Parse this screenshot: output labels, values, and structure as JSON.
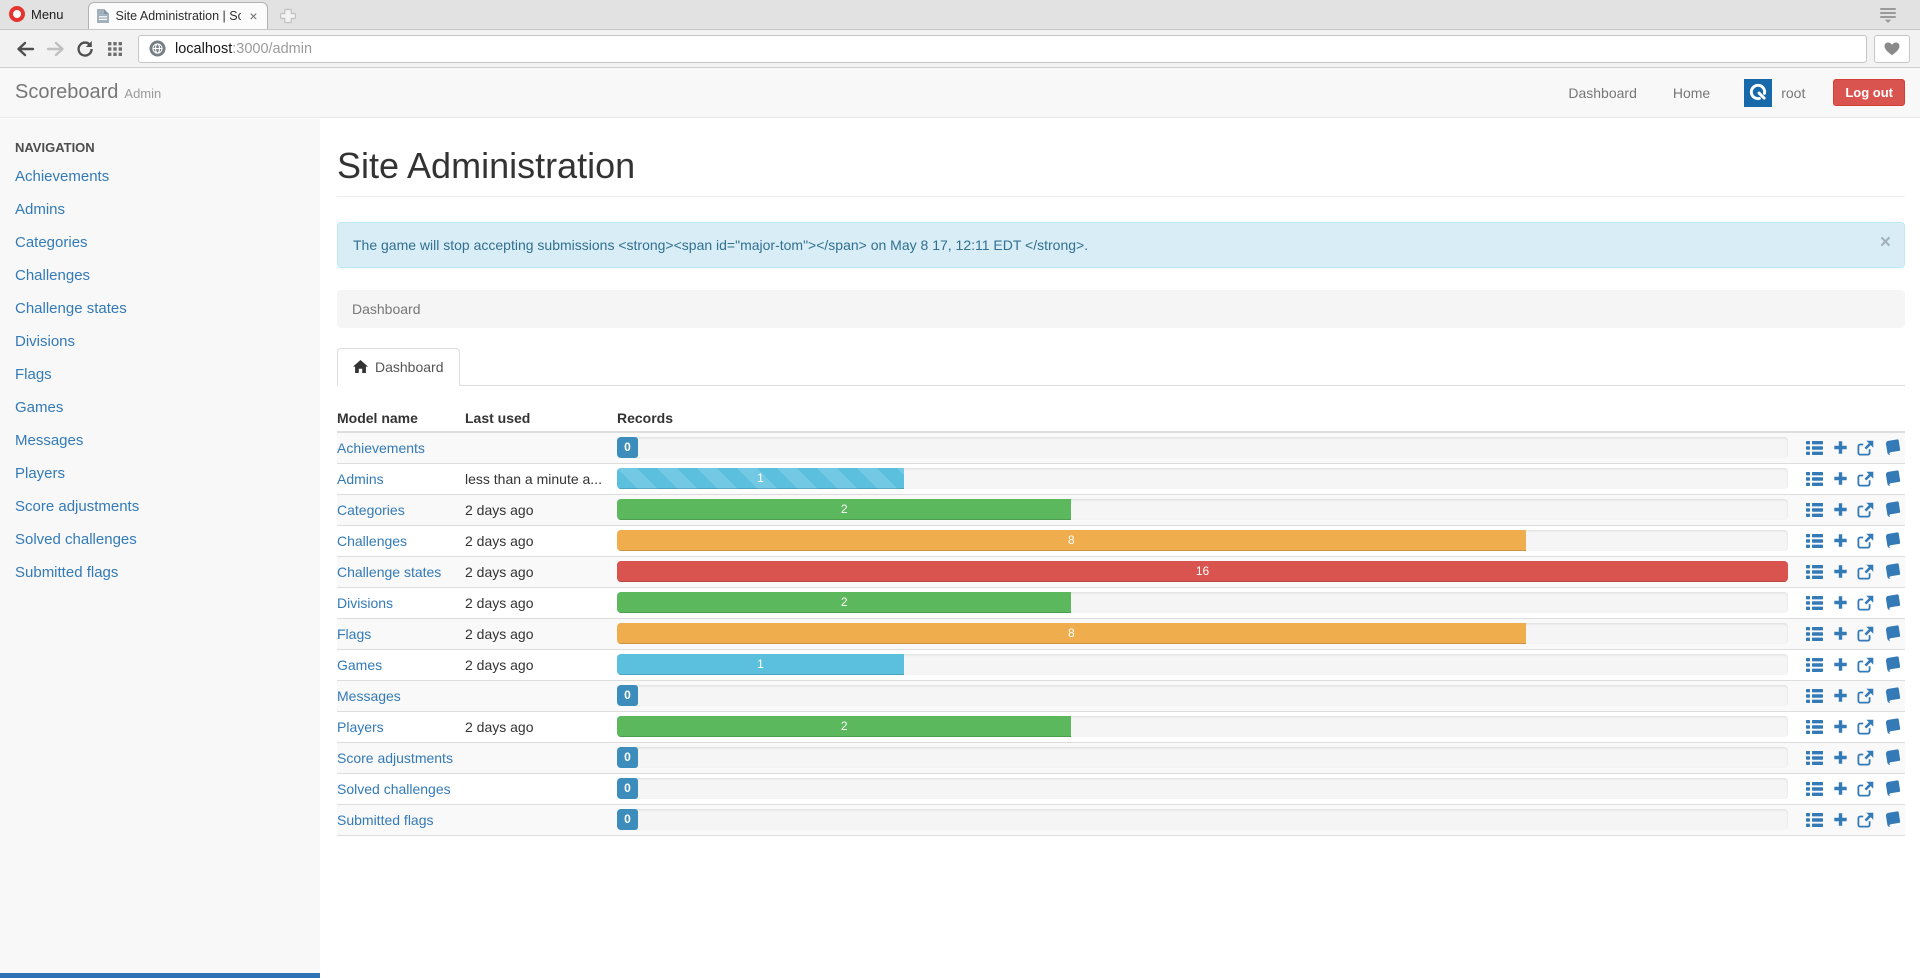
{
  "browser": {
    "menu_label": "Menu",
    "tab_title": "Site Administration | Sco",
    "tab_close": "×",
    "url_host": "localhost",
    "url_rest": ":3000/admin"
  },
  "header": {
    "brand": "Scoreboard",
    "brand_suffix": "Admin",
    "nav_dashboard": "Dashboard",
    "nav_home": "Home",
    "username": "root",
    "logout_label": "Log out"
  },
  "sidebar": {
    "title": "NAVIGATION",
    "items": [
      "Achievements",
      "Admins",
      "Categories",
      "Challenges",
      "Challenge states",
      "Divisions",
      "Flags",
      "Games",
      "Messages",
      "Players",
      "Score adjustments",
      "Solved challenges",
      "Submitted flags"
    ]
  },
  "main": {
    "title": "Site Administration",
    "alert_text": "The game will stop accepting submissions <strong><span id=\"major-tom\"></span> on May 8 17, 12:11 EDT </strong>.",
    "alert_close": "×",
    "breadcrumb": "Dashboard",
    "tab_label": "Dashboard",
    "table": {
      "headers": [
        "Model name",
        "Last used",
        "Records"
      ],
      "rows": [
        {
          "name": "Achievements",
          "last_used": "",
          "count": 0,
          "percent": 0,
          "color": "info",
          "striped": false
        },
        {
          "name": "Admins",
          "last_used": "less than a minute a...",
          "count": 1,
          "percent": 24.5,
          "color": "info",
          "striped": true
        },
        {
          "name": "Categories",
          "last_used": "2 days ago",
          "count": 2,
          "percent": 38.8,
          "color": "success",
          "striped": false
        },
        {
          "name": "Challenges",
          "last_used": "2 days ago",
          "count": 8,
          "percent": 77.6,
          "color": "warning",
          "striped": false
        },
        {
          "name": "Challenge states",
          "last_used": "2 days ago",
          "count": 16,
          "percent": 100,
          "color": "danger",
          "striped": false
        },
        {
          "name": "Divisions",
          "last_used": "2 days ago",
          "count": 2,
          "percent": 38.8,
          "color": "success",
          "striped": false
        },
        {
          "name": "Flags",
          "last_used": "2 days ago",
          "count": 8,
          "percent": 77.6,
          "color": "warning",
          "striped": false
        },
        {
          "name": "Games",
          "last_used": "2 days ago",
          "count": 1,
          "percent": 24.5,
          "color": "info",
          "striped": false
        },
        {
          "name": "Messages",
          "last_used": "",
          "count": 0,
          "percent": 0,
          "color": "info",
          "striped": false
        },
        {
          "name": "Players",
          "last_used": "2 days ago",
          "count": 2,
          "percent": 38.8,
          "color": "success",
          "striped": false
        },
        {
          "name": "Score adjustments",
          "last_used": "",
          "count": 0,
          "percent": 0,
          "color": "info",
          "striped": false
        },
        {
          "name": "Solved challenges",
          "last_used": "",
          "count": 0,
          "percent": 0,
          "color": "info",
          "striped": false
        },
        {
          "name": "Submitted flags",
          "last_used": "",
          "count": 0,
          "percent": 0,
          "color": "info",
          "striped": false
        }
      ],
      "row_action_icons": [
        "list-icon",
        "add-icon",
        "export-icon",
        "history-icon"
      ]
    }
  },
  "colors": {
    "info": "#5bc0de",
    "success": "#5cb85c",
    "warning": "#f0ad4e",
    "danger": "#d9534f",
    "zero_badge": "#3c8dbc",
    "link": "#337ab7",
    "logout": "#d9534f",
    "alert_bg": "#d9edf7"
  }
}
